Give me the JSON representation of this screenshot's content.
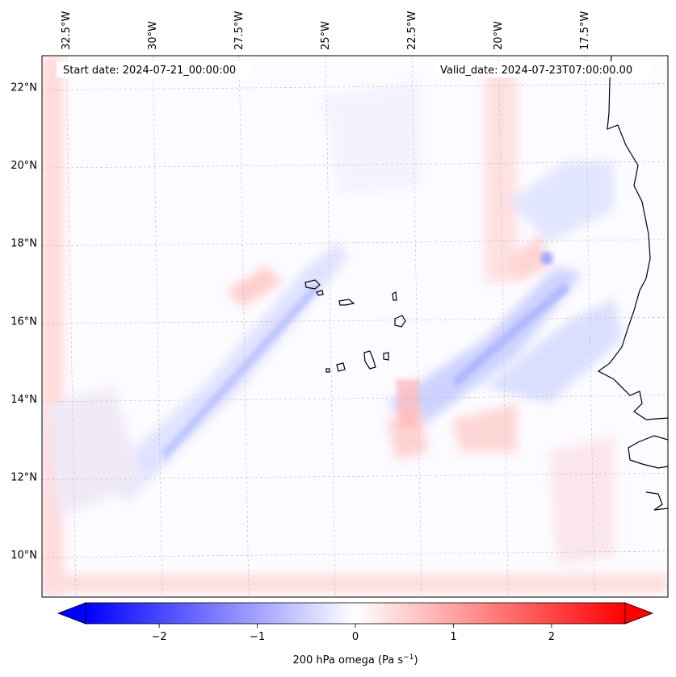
{
  "header": {
    "start_date": "Start date: 2024-07-21_00:00:00",
    "valid_date": "Valid_date: 2024-07-23T07:00:00.00"
  },
  "map": {
    "lon_range": [
      -33.2,
      -15.1
    ],
    "lat_range": [
      8.9,
      22.8
    ],
    "lon_ticks": [
      {
        "value": -32.5,
        "label": "32.5°W"
      },
      {
        "value": -30.0,
        "label": "30°W"
      },
      {
        "value": -27.5,
        "label": "27.5°W"
      },
      {
        "value": -25.0,
        "label": "25°W"
      },
      {
        "value": -22.5,
        "label": "22.5°W"
      },
      {
        "value": -20.0,
        "label": "20°W"
      },
      {
        "value": -17.5,
        "label": "17.5°W"
      }
    ],
    "lat_ticks": [
      {
        "value": 10,
        "label": "10°N"
      },
      {
        "value": 12,
        "label": "12°N"
      },
      {
        "value": 14,
        "label": "14°N"
      },
      {
        "value": 16,
        "label": "16°N"
      },
      {
        "value": 18,
        "label": "18°N"
      },
      {
        "value": 20,
        "label": "20°N"
      },
      {
        "value": 22,
        "label": "22°N"
      }
    ],
    "gridlines": true,
    "field_colormap": "bwr",
    "coastline_color": "#000000"
  },
  "colorbar": {
    "label": "200 hPa omega (Pa s",
    "label_superscript": "−1",
    "label_suffix": ")",
    "range": [
      -2.75,
      2.75
    ],
    "ticks": [
      {
        "value": -2,
        "label": "−2"
      },
      {
        "value": -1,
        "label": "−1"
      },
      {
        "value": 0,
        "label": "0"
      },
      {
        "value": 1,
        "label": "1"
      },
      {
        "value": 2,
        "label": "2"
      }
    ],
    "color_min": "#0000ff",
    "color_mid": "#ffffff",
    "color_max": "#ff0000",
    "extend": "both"
  }
}
